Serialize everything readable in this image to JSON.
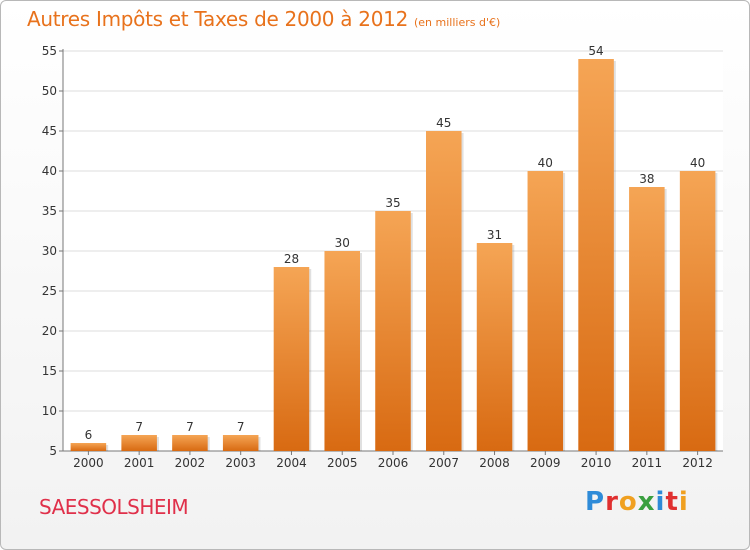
{
  "title": "Autres Impôts et Taxes de 2000 à 2012",
  "unit": "(en milliers d'€)",
  "commune": "SAESSOLSHEIM",
  "logo": {
    "text": "Proxiti",
    "letters": [
      {
        "ch": "P",
        "color": "#2e8bd8"
      },
      {
        "ch": "r",
        "color": "#e03030"
      },
      {
        "ch": "o",
        "color": "#f0a020"
      },
      {
        "ch": "x",
        "color": "#3aa040"
      },
      {
        "ch": "i",
        "color": "#2e8bd8"
      },
      {
        "ch": "t",
        "color": "#e03030"
      },
      {
        "ch": "i",
        "color": "#f0a020"
      }
    ]
  },
  "colors": {
    "bar_top": "#f5a555",
    "bar_bottom": "#d86a12",
    "title": "#e8721c",
    "commune": "#e0304a",
    "grid": "#dddddd"
  },
  "chart_data": {
    "type": "bar",
    "categories": [
      "2000",
      "2001",
      "2002",
      "2003",
      "2004",
      "2005",
      "2006",
      "2007",
      "2008",
      "2009",
      "2010",
      "2011",
      "2012"
    ],
    "values": [
      6,
      7,
      7,
      7,
      28,
      30,
      35,
      45,
      31,
      40,
      54,
      38,
      40
    ],
    "title": "Autres Impôts et Taxes de 2000 à 2012",
    "xlabel": "",
    "ylabel": "",
    "ylim": [
      5,
      55
    ],
    "yticks": [
      5,
      10,
      15,
      20,
      25,
      30,
      35,
      40,
      45,
      50,
      55
    ],
    "grid": true
  }
}
